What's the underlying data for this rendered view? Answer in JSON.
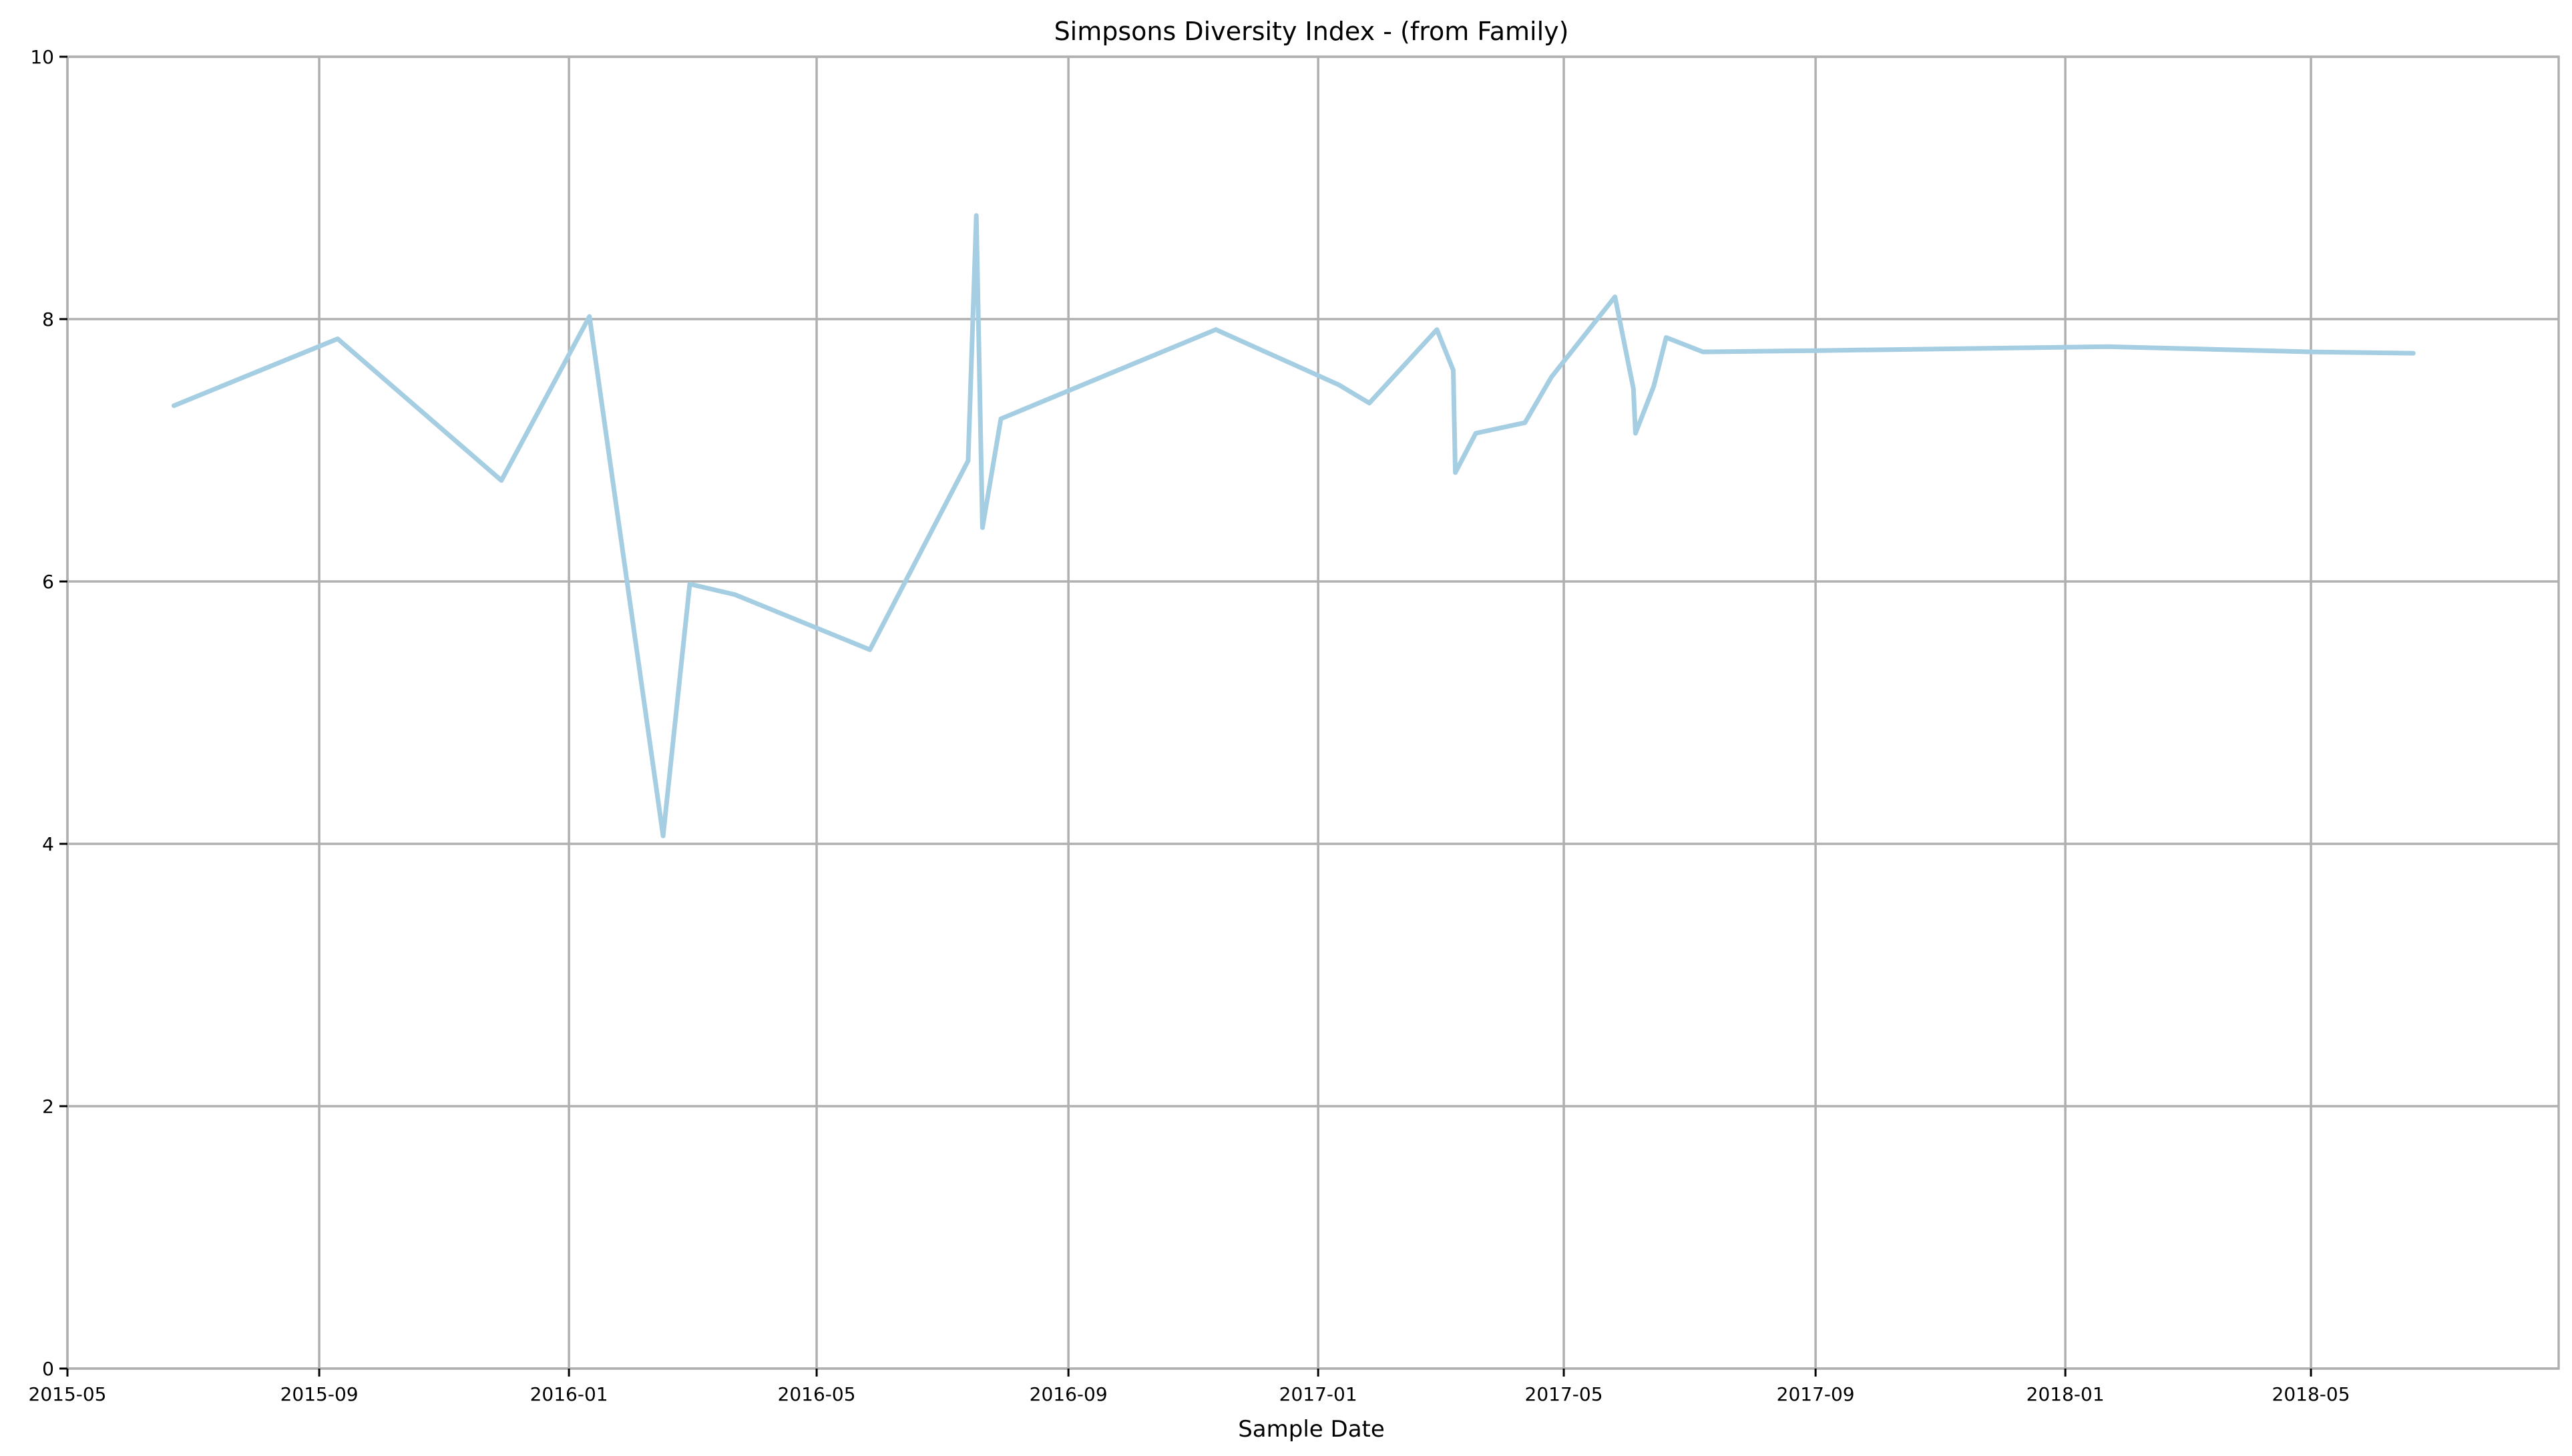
{
  "chart_data": {
    "type": "line",
    "title": "Simpsons Diversity Index - (from Family)",
    "xlabel": "Sample Date",
    "ylabel": "",
    "x_type": "date",
    "xlim": [
      "2015-05-01",
      "2018-08-30"
    ],
    "ylim": [
      0,
      10
    ],
    "x_ticks": [
      "2015-05",
      "2015-09",
      "2016-01",
      "2016-05",
      "2016-09",
      "2017-01",
      "2017-05",
      "2017-09",
      "2018-01",
      "2018-05"
    ],
    "y_ticks": [
      0,
      2,
      4,
      6,
      8,
      10
    ],
    "grid": true,
    "legend": false,
    "series": [
      {
        "color": "#a6cee3",
        "points": [
          {
            "x": "2015-06-22",
            "y": 7.34
          },
          {
            "x": "2015-09-10",
            "y": 7.85
          },
          {
            "x": "2015-11-29",
            "y": 6.77
          },
          {
            "x": "2016-01-11",
            "y": 8.02
          },
          {
            "x": "2016-02-16",
            "y": 4.06
          },
          {
            "x": "2016-02-29",
            "y": 5.98
          },
          {
            "x": "2016-03-22",
            "y": 5.9
          },
          {
            "x": "2016-05-27",
            "y": 5.48
          },
          {
            "x": "2016-07-14",
            "y": 6.92
          },
          {
            "x": "2016-07-18",
            "y": 8.79
          },
          {
            "x": "2016-07-21",
            "y": 6.41
          },
          {
            "x": "2016-07-30",
            "y": 7.24
          },
          {
            "x": "2016-11-12",
            "y": 7.92
          },
          {
            "x": "2017-01-11",
            "y": 7.5
          },
          {
            "x": "2017-01-26",
            "y": 7.36
          },
          {
            "x": "2017-02-28",
            "y": 7.92
          },
          {
            "x": "2017-03-08",
            "y": 7.61
          },
          {
            "x": "2017-03-09",
            "y": 6.83
          },
          {
            "x": "2017-03-19",
            "y": 7.13
          },
          {
            "x": "2017-04-12",
            "y": 7.21
          },
          {
            "x": "2017-04-25",
            "y": 7.56
          },
          {
            "x": "2017-05-26",
            "y": 8.17
          },
          {
            "x": "2017-06-04",
            "y": 7.47
          },
          {
            "x": "2017-06-05",
            "y": 7.13
          },
          {
            "x": "2017-06-14",
            "y": 7.49
          },
          {
            "x": "2017-06-20",
            "y": 7.86
          },
          {
            "x": "2017-07-08",
            "y": 7.75
          },
          {
            "x": "2017-09-01",
            "y": 7.76
          },
          {
            "x": "2018-01-22",
            "y": 7.79
          },
          {
            "x": "2018-05-01",
            "y": 7.75
          },
          {
            "x": "2018-06-20",
            "y": 7.74
          }
        ]
      }
    ]
  }
}
